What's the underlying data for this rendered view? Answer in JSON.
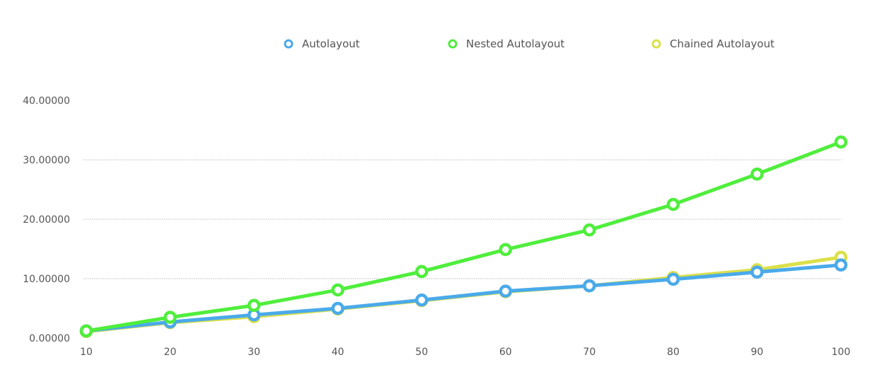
{
  "chart_data": {
    "type": "line",
    "title": "",
    "xlabel": "",
    "ylabel": "",
    "x": [
      10,
      20,
      30,
      40,
      50,
      60,
      70,
      80,
      90,
      100
    ],
    "x_tick_labels": [
      "10",
      "20",
      "30",
      "40",
      "50",
      "60",
      "70",
      "80",
      "90",
      "100"
    ],
    "y_tick_labels": [
      "0.00000",
      "10.00000",
      "20.00000",
      "30.00000",
      "40.00000"
    ],
    "y_ticks": [
      0,
      10,
      20,
      30,
      40
    ],
    "ylim": [
      0,
      40
    ],
    "grid": true,
    "legend_position": "top",
    "series": [
      {
        "name": "Chained Autolayout",
        "color": "#dbe04a",
        "values": [
          1.1,
          2.6,
          3.6,
          4.9,
          6.3,
          7.8,
          8.8,
          10.2,
          11.5,
          13.6
        ]
      },
      {
        "name": "Autolayout",
        "color": "#4aaaea",
        "values": [
          1.2,
          2.7,
          3.9,
          5.0,
          6.4,
          7.9,
          8.8,
          9.9,
          11.1,
          12.3
        ]
      },
      {
        "name": "Nested Autolayout",
        "color": "#4fee3c",
        "values": [
          1.2,
          3.5,
          5.5,
          8.1,
          11.2,
          14.9,
          18.2,
          22.5,
          27.6,
          33.0
        ]
      }
    ],
    "legend_order": [
      "Autolayout",
      "Nested Autolayout",
      "Chained Autolayout"
    ]
  }
}
